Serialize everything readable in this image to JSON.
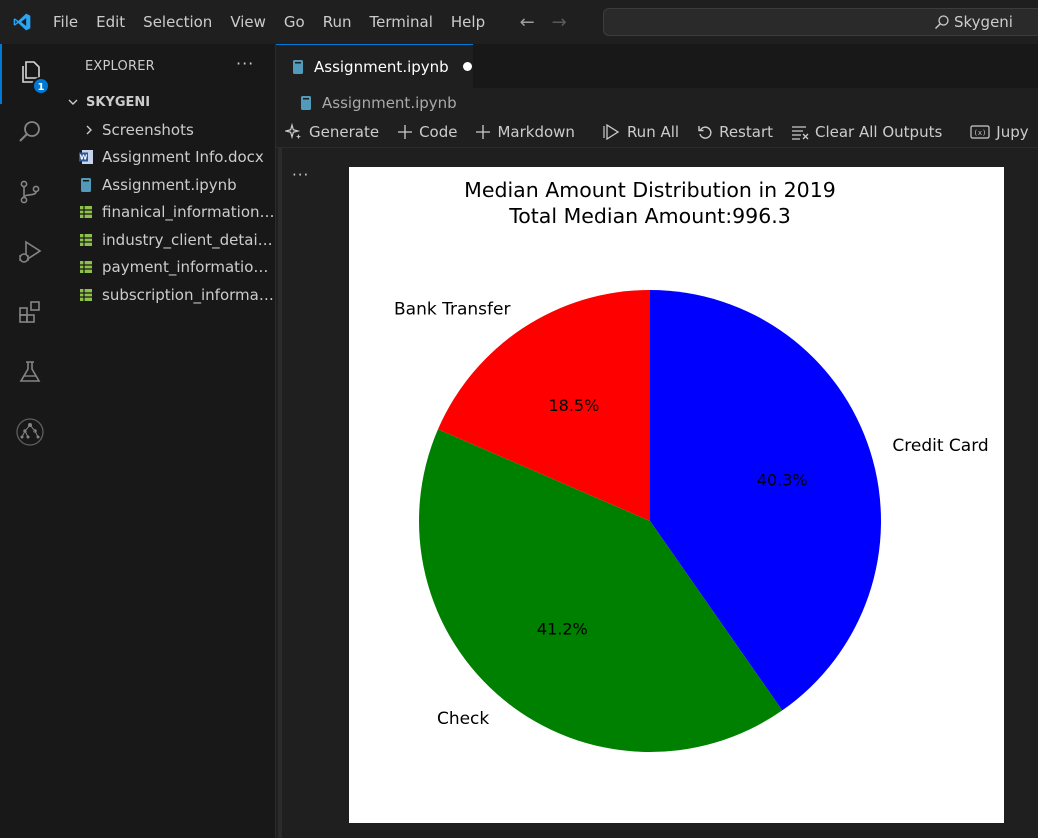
{
  "menu": {
    "items": [
      "File",
      "Edit",
      "Selection",
      "View",
      "Go",
      "Run",
      "Terminal",
      "Help"
    ]
  },
  "search": {
    "text": "Skygeni"
  },
  "activity": {
    "explorer_badge": "1"
  },
  "sidebar": {
    "title": "EXPLORER",
    "folder": "SKYGENI",
    "items": [
      {
        "label": "Screenshots",
        "icon": "chevron-right-icon"
      },
      {
        "label": "Assignment Info.docx",
        "icon": "word-file-icon"
      },
      {
        "label": "Assignment.ipynb",
        "icon": "notebook-file-icon"
      },
      {
        "label": "finanical_information....",
        "icon": "csv-file-icon"
      },
      {
        "label": "industry_client_details...",
        "icon": "csv-file-icon"
      },
      {
        "label": "payment_information....",
        "icon": "csv-file-icon"
      },
      {
        "label": "subscription_informat...",
        "icon": "csv-file-icon"
      }
    ]
  },
  "editor": {
    "tab_label": "Assignment.ipynb",
    "breadcrumb": "Assignment.ipynb",
    "toolbar": {
      "generate": "Generate",
      "code": "Code",
      "markdown": "Markdown",
      "run_all": "Run All",
      "restart": "Restart",
      "clear_outputs": "Clear All Outputs",
      "jupyter": "Jupy"
    }
  },
  "colors": {
    "accent": "#0078d4",
    "credit_card": "#0000ff",
    "check": "#008000",
    "bank_transfer": "#ff0000"
  },
  "chart_data": {
    "type": "pie",
    "title": "Median Amount Distribution in 2019",
    "subtitle": "Total Median Amount:996.3",
    "categories": [
      "Credit Card",
      "Check",
      "Bank Transfer"
    ],
    "values": [
      40.3,
      41.2,
      18.5
    ],
    "value_labels": [
      "40.3%",
      "41.2%",
      "18.5%"
    ],
    "colors": [
      "#0000ff",
      "#008000",
      "#ff0000"
    ],
    "start_angle_deg": 90,
    "direction": "clockwise",
    "legend": "none"
  }
}
